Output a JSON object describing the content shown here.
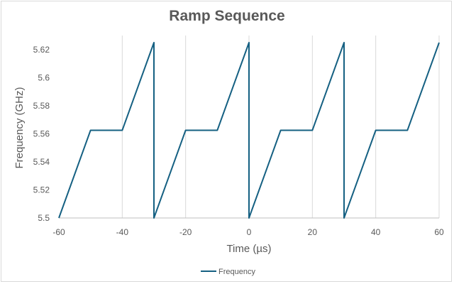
{
  "chart_data": {
    "type": "line",
    "title": "Ramp Sequence",
    "xlabel": "Time (µs)",
    "ylabel": "Frequency (GHz)",
    "xlim": [
      -60,
      60
    ],
    "ylim": [
      5.5,
      5.625
    ],
    "x_ticks": [
      "-60",
      "-40",
      "-20",
      "0",
      "20",
      "40",
      "60"
    ],
    "y_ticks": [
      "5.5",
      "5.52",
      "5.54",
      "5.56",
      "5.58",
      "5.6",
      "5.62"
    ],
    "grid": "vertical",
    "legend_position": "bottom",
    "series": [
      {
        "name": "Frequency",
        "color": "#156082",
        "x": [
          -60,
          -50,
          -40,
          -30,
          -30,
          -20,
          -10,
          0,
          0,
          10,
          20,
          30,
          30,
          40,
          50,
          60
        ],
        "y": [
          5.5,
          5.5625,
          5.5625,
          5.625,
          5.5,
          5.5625,
          5.5625,
          5.625,
          5.5,
          5.5625,
          5.5625,
          5.625,
          5.5,
          5.5625,
          5.5625,
          5.625
        ]
      }
    ]
  }
}
